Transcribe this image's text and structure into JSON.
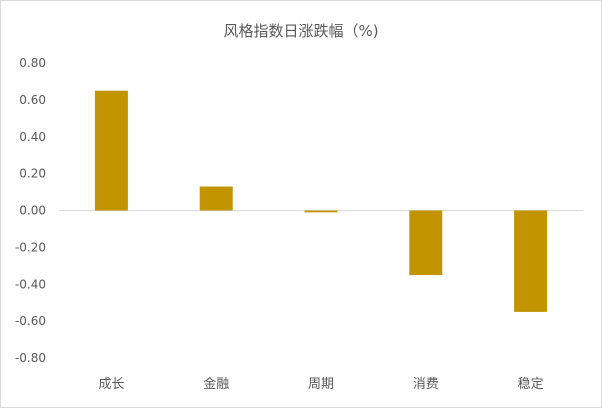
{
  "chart_data": {
    "type": "bar",
    "title": "风格指数日涨跌幅（%)",
    "categories": [
      "成长",
      "金融",
      "周期",
      "消费",
      "稳定"
    ],
    "values": [
      0.65,
      0.13,
      -0.01,
      -0.35,
      -0.55
    ],
    "ylim": [
      -0.8,
      0.8
    ],
    "yticks": [
      0.8,
      0.6,
      0.4,
      0.2,
      0.0,
      -0.2,
      -0.4,
      -0.6,
      -0.8
    ],
    "ytick_labels": [
      "0.80",
      "0.60",
      "0.40",
      "0.20",
      "0.00",
      "-0.20",
      "-0.40",
      "-0.60",
      "-0.80"
    ],
    "xlabel": "",
    "ylabel": "",
    "grid": false,
    "legend": false,
    "bar_color": "#C29500",
    "axis_color": "#d9d9d9",
    "text_color": "#595959"
  }
}
